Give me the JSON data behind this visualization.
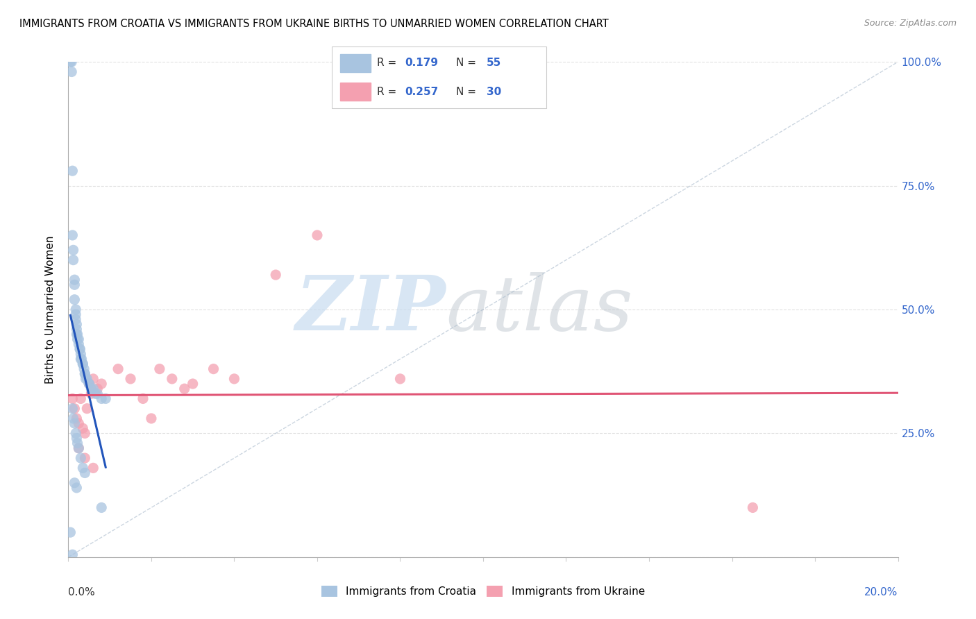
{
  "title": "IMMIGRANTS FROM CROATIA VS IMMIGRANTS FROM UKRAINE BIRTHS TO UNMARRIED WOMEN CORRELATION CHART",
  "source": "Source: ZipAtlas.com",
  "ylabel": "Births to Unmarried Women",
  "xmin": 0.0,
  "xmax": 20.0,
  "ymin": 0.0,
  "ymax": 100.0,
  "croatia_color": "#a8c4e0",
  "ukraine_color": "#f4a0b0",
  "croatia_R": 0.179,
  "croatia_N": 55,
  "ukraine_R": 0.257,
  "ukraine_N": 30,
  "trendline_croatia_color": "#2255bb",
  "trendline_ukraine_color": "#e05575",
  "diagonal_color": "#aabbcc",
  "grid_color": "#cccccc",
  "croatia_scatter_x": [
    0.05,
    0.08,
    0.08,
    0.1,
    0.1,
    0.12,
    0.12,
    0.15,
    0.15,
    0.15,
    0.18,
    0.18,
    0.18,
    0.2,
    0.2,
    0.2,
    0.22,
    0.22,
    0.25,
    0.25,
    0.28,
    0.28,
    0.3,
    0.3,
    0.32,
    0.35,
    0.35,
    0.38,
    0.4,
    0.4,
    0.42,
    0.45,
    0.5,
    0.5,
    0.55,
    0.6,
    0.65,
    0.7,
    0.8,
    0.9,
    0.1,
    0.12,
    0.15,
    0.18,
    0.2,
    0.22,
    0.25,
    0.3,
    0.35,
    0.4,
    0.15,
    0.2,
    0.8,
    0.05,
    0.1
  ],
  "croatia_scatter_y": [
    100.0,
    100.0,
    98.0,
    78.0,
    65.0,
    62.0,
    60.0,
    56.0,
    55.0,
    52.0,
    50.0,
    49.0,
    48.0,
    47.0,
    46.0,
    45.0,
    45.0,
    44.0,
    44.0,
    43.0,
    42.0,
    42.0,
    41.0,
    40.0,
    40.0,
    39.0,
    39.0,
    38.0,
    37.0,
    37.0,
    36.0,
    36.0,
    35.0,
    35.0,
    34.0,
    34.0,
    33.0,
    33.0,
    32.0,
    32.0,
    30.0,
    28.0,
    27.0,
    25.0,
    24.0,
    23.0,
    22.0,
    20.0,
    18.0,
    17.0,
    15.0,
    14.0,
    10.0,
    5.0,
    0.5
  ],
  "ukraine_scatter_x": [
    0.1,
    0.15,
    0.2,
    0.25,
    0.3,
    0.35,
    0.4,
    0.45,
    0.5,
    0.55,
    0.6,
    0.7,
    0.8,
    1.2,
    1.5,
    1.8,
    2.0,
    2.2,
    2.5,
    2.8,
    3.0,
    3.5,
    4.0,
    5.0,
    6.0,
    8.0,
    16.5,
    0.25,
    0.4,
    0.6
  ],
  "ukraine_scatter_y": [
    32.0,
    30.0,
    28.0,
    27.0,
    32.0,
    26.0,
    25.0,
    30.0,
    35.0,
    33.0,
    36.0,
    34.0,
    35.0,
    38.0,
    36.0,
    32.0,
    28.0,
    38.0,
    36.0,
    34.0,
    35.0,
    38.0,
    36.0,
    57.0,
    65.0,
    36.0,
    10.0,
    22.0,
    20.0,
    18.0
  ]
}
